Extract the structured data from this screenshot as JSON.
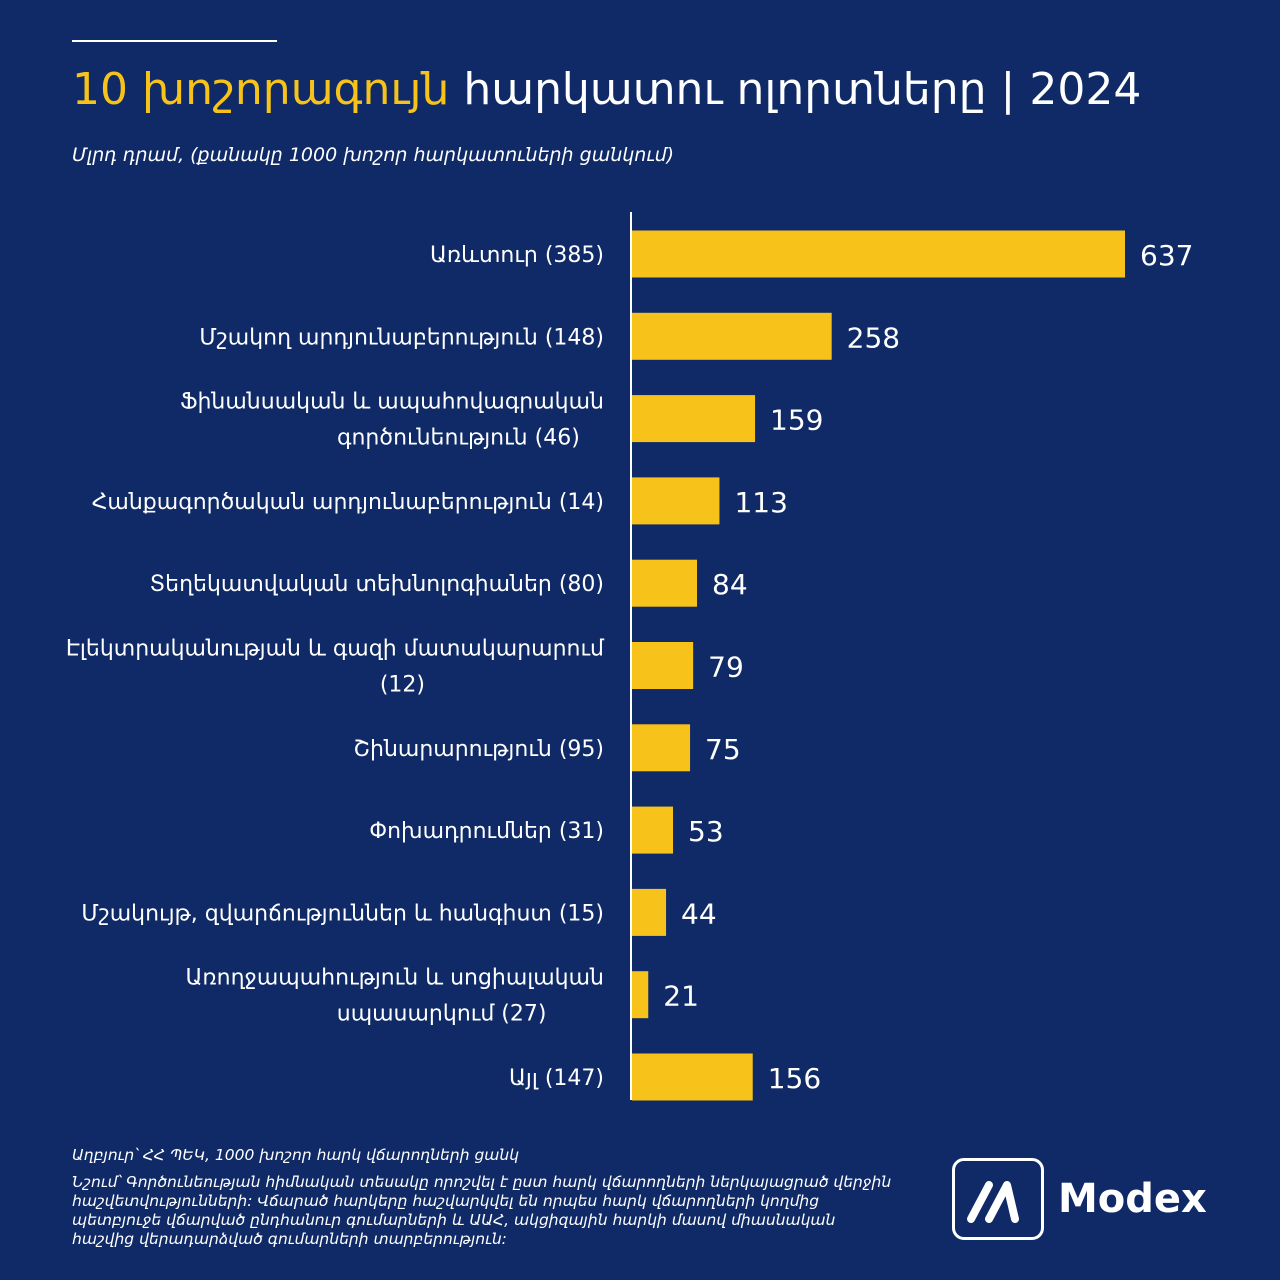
{
  "header": {
    "title_accent": "10 խոշորագույն",
    "title_rest": " հարկատու ոլորտները | 2024",
    "subtitle": "Մլրդ դրամ, (քանակը 1000 խոշոր հարկատուների ցանկում)"
  },
  "chart_data": {
    "type": "bar",
    "orientation": "horizontal",
    "categories": [
      [
        "Առևտուր (385)"
      ],
      [
        "Մշակող արդյունաբերություն (148)"
      ],
      [
        "Ֆինանսական և ապահովագրական",
        "գործունեություն (46)"
      ],
      [
        "Հանքագործական արդյունաբերություն (14)"
      ],
      [
        "Տեղեկատվական տեխնոլոգիաներ (80)"
      ],
      [
        "Էլեկտրականության և գազի մատակարարում",
        "(12)"
      ],
      [
        "Շինարարություն (95)"
      ],
      [
        "Փոխադրումներ (31)"
      ],
      [
        "Մշակույթ, զվարճություններ և հանգիստ (15)"
      ],
      [
        "Առողջապահություն և սոցիալական",
        "սպասարկում (27)"
      ],
      [
        "Այլ (147)"
      ]
    ],
    "values": [
      637,
      258,
      159,
      113,
      84,
      79,
      75,
      53,
      44,
      21,
      156
    ],
    "colors": {
      "bar": "#f7c31a",
      "axis": "#ffffff",
      "text": "#ffffff",
      "background": "#0f2a66"
    },
    "xlim": [
      0,
      637
    ],
    "grid": false,
    "legend": "none"
  },
  "footer": {
    "source": "Աղբյուր՝ ՀՀ ՊԵԿ, 1000 խոշոր հարկ վճարողների ցանկ",
    "note": "Նշում՝ Գործունեության հիմնական տեսակը որոշվել է ըստ հարկ վճարողների ներկայացրած վերջին հաշվետվությունների: Վճարած հարկերը հաշվարկվել են որպես հարկ վճարողների կողմից պետբյուջե վճարված ընդհանուր գումարների և ԱԱՀ, ակցիզային հարկի մասով միասնական հաշվից վերադարձված գումարների տարբերություն:"
  },
  "logo": {
    "text": "Modex",
    "icon": "modex-logo-icon"
  }
}
